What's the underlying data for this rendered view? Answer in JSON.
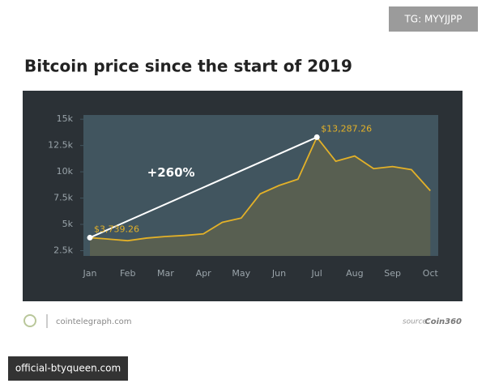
{
  "watermark": "TG: MYYJJPP",
  "footer": {
    "site": "cointelegraph.com",
    "source_label": "source:",
    "source": "Coin360",
    "banner": "official-btyqueen.com"
  },
  "chart_data": {
    "type": "line",
    "title": "Bitcoin price since the start of 2019",
    "annotation": "+260%",
    "categories": [
      "Jan",
      null,
      "Feb",
      null,
      "Mar",
      null,
      "Apr",
      null,
      "May",
      null,
      "Jun",
      null,
      "Jul",
      null,
      "Aug",
      null,
      "Sep",
      null,
      "Oct"
    ],
    "values": [
      3739.26,
      3600,
      3450,
      3700,
      3850,
      3950,
      4100,
      5200,
      5600,
      7900,
      8700,
      9300,
      13287.26,
      11000,
      11500,
      10300,
      10500,
      10200,
      8200
    ],
    "value_labels": [
      "$3,739.26",
      null,
      null,
      null,
      null,
      null,
      null,
      null,
      null,
      null,
      null,
      null,
      "$13,287.26",
      null,
      null,
      null,
      null,
      null,
      null
    ],
    "color": "#e3b128",
    "ylim": [
      2000,
      15400
    ],
    "yticks": [
      {
        "value": 2500,
        "label": "2.5k"
      },
      {
        "value": 5000,
        "label": "5k"
      },
      {
        "value": 7500,
        "label": "7.5k"
      },
      {
        "value": 10000,
        "label": "10k"
      },
      {
        "value": 12500,
        "label": "12.5k"
      },
      {
        "value": 15000,
        "label": "15k"
      }
    ]
  }
}
